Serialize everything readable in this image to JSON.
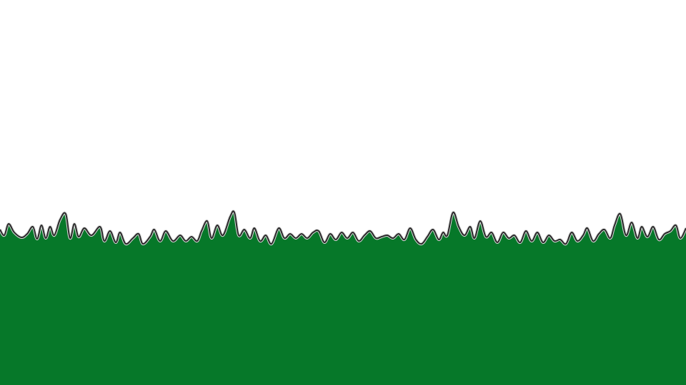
{
  "scene": {
    "sky_color": "#ffffff",
    "grass_color": "#067829",
    "grass_outline_color": "#2a2a2a",
    "grass_highlight_color": "#d8d8d8"
  }
}
